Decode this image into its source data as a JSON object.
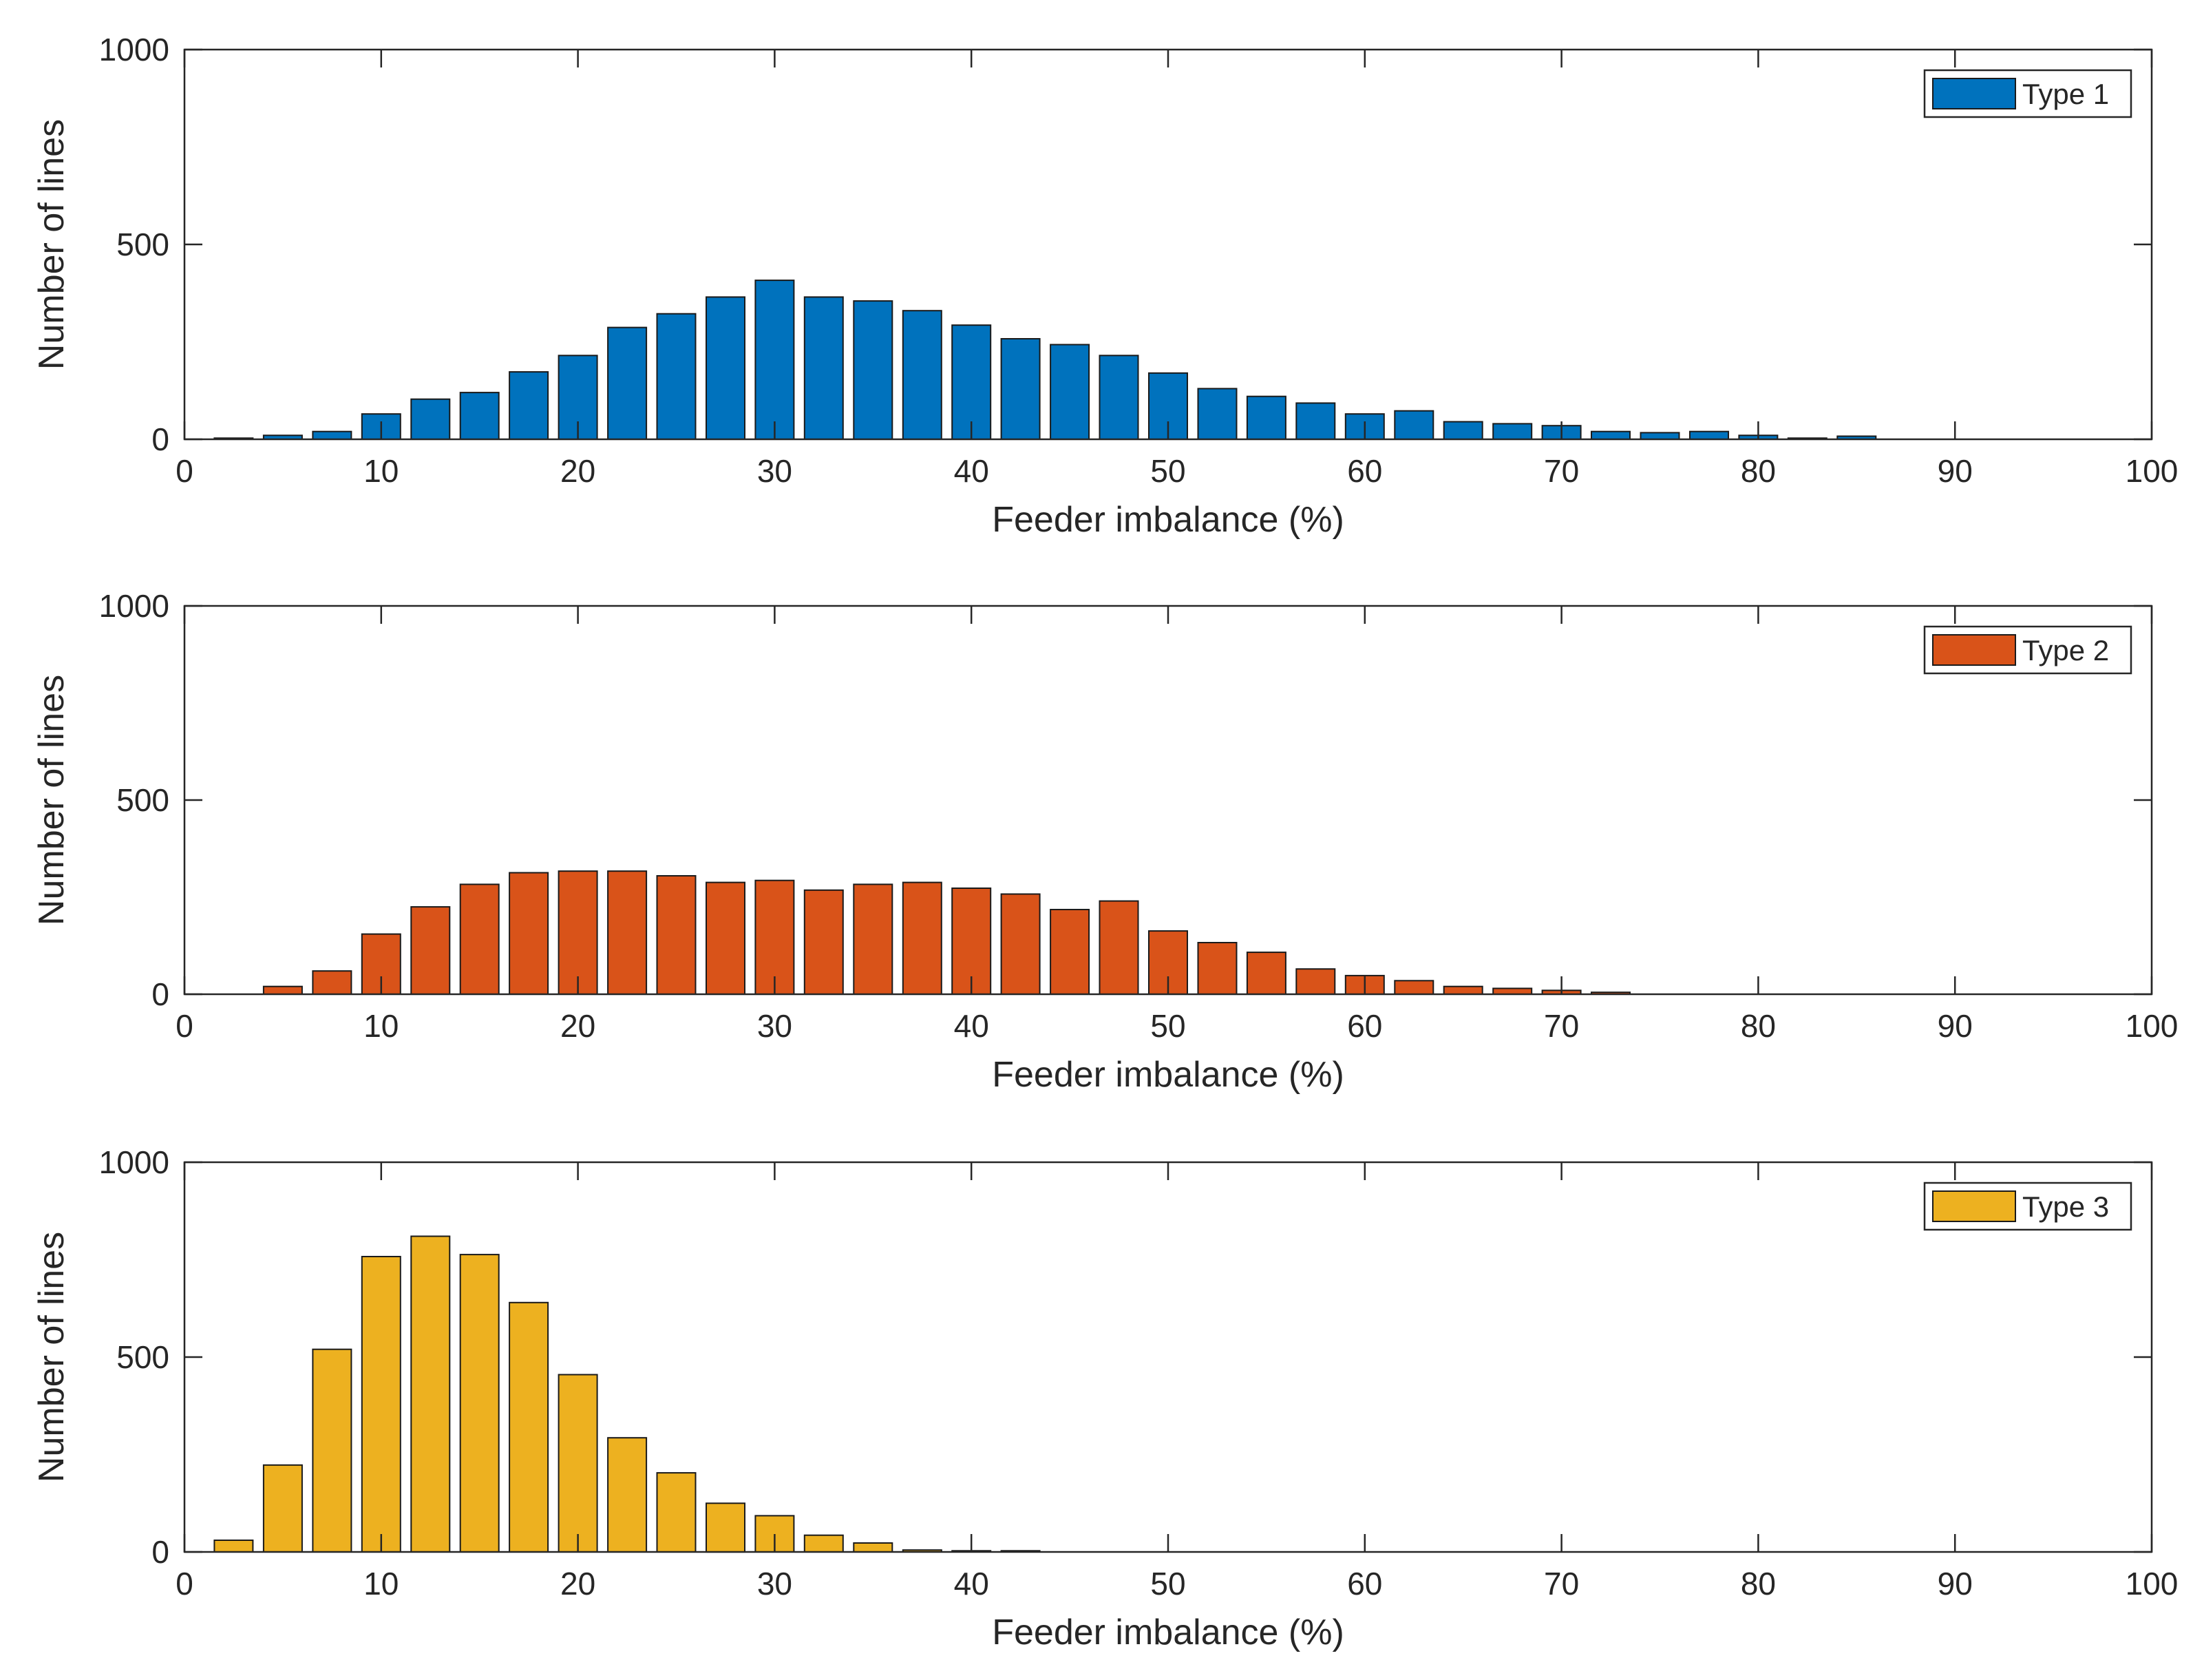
{
  "chart_data": [
    {
      "type": "bar",
      "title": "",
      "xlabel": "Feeder imbalance (%)",
      "ylabel": "Number of lines",
      "xlim": [
        0,
        100
      ],
      "ylim": [
        0,
        1000
      ],
      "xticks": [
        0,
        10,
        20,
        30,
        40,
        50,
        60,
        70,
        80,
        90,
        100
      ],
      "yticks": [
        0,
        500,
        1000
      ],
      "legend_position": "top-right",
      "series": [
        {
          "name": "Type 1",
          "color": "#0072BD",
          "x": [
            2.5,
            5,
            7.5,
            10,
            12.5,
            15,
            17.5,
            20,
            22.5,
            25,
            27.5,
            30,
            32.5,
            35,
            37.5,
            40,
            42.5,
            45,
            47.5,
            50,
            52.5,
            55,
            57.5,
            60,
            62.5,
            65,
            67.5,
            70,
            72.5,
            75,
            77.5,
            80,
            82.5,
            85
          ],
          "values": [
            3,
            10,
            20,
            65,
            103,
            120,
            173,
            215,
            287,
            322,
            365,
            408,
            365,
            355,
            330,
            293,
            258,
            243,
            215,
            170,
            130,
            110,
            93,
            65,
            73,
            45,
            40,
            35,
            20,
            17,
            20,
            10,
            3,
            8
          ]
        }
      ]
    },
    {
      "type": "bar",
      "title": "",
      "xlabel": "Feeder imbalance (%)",
      "ylabel": "Number of lines",
      "xlim": [
        0,
        100
      ],
      "ylim": [
        0,
        1000
      ],
      "xticks": [
        0,
        10,
        20,
        30,
        40,
        50,
        60,
        70,
        80,
        90,
        100
      ],
      "yticks": [
        0,
        500,
        1000
      ],
      "legend_position": "top-right",
      "series": [
        {
          "name": "Type 2",
          "color": "#D95319",
          "x": [
            5,
            7.5,
            10,
            12.5,
            15,
            17.5,
            20,
            22.5,
            25,
            27.5,
            30,
            32.5,
            35,
            37.5,
            40,
            42.5,
            45,
            47.5,
            50,
            52.5,
            55,
            57.5,
            60,
            62.5,
            65,
            67.5,
            70,
            72.5
          ],
          "values": [
            20,
            60,
            155,
            225,
            283,
            313,
            317,
            317,
            305,
            288,
            293,
            268,
            283,
            288,
            273,
            258,
            218,
            240,
            163,
            133,
            108,
            65,
            48,
            35,
            20,
            15,
            10,
            5
          ]
        }
      ]
    },
    {
      "type": "bar",
      "title": "",
      "xlabel": "Feeder imbalance (%)",
      "ylabel": "Number of lines",
      "xlim": [
        0,
        100
      ],
      "ylim": [
        0,
        1000
      ],
      "xticks": [
        0,
        10,
        20,
        30,
        40,
        50,
        60,
        70,
        80,
        90,
        100
      ],
      "yticks": [
        0,
        500,
        1000
      ],
      "legend_position": "top-right",
      "series": [
        {
          "name": "Type 3",
          "color": "#EDB120",
          "x": [
            2.5,
            5,
            7.5,
            10,
            12.5,
            15,
            17.5,
            20,
            22.5,
            25,
            27.5,
            30,
            32.5,
            35,
            37.5,
            40,
            42.5
          ],
          "values": [
            30,
            223,
            520,
            758,
            810,
            763,
            640,
            455,
            293,
            203,
            125,
            93,
            43,
            23,
            5,
            3,
            3
          ]
        }
      ]
    }
  ]
}
